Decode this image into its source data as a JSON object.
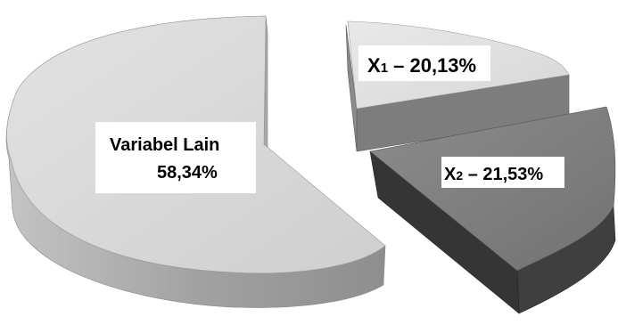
{
  "chart_data": {
    "type": "pie",
    "style": "3d-exploded",
    "legend": "none",
    "slices": [
      {
        "label_main": "X",
        "label_sub": "1",
        "label_rest": " – 20,13%",
        "value": 20.13,
        "color_top": "#e3e3e3",
        "color_side": "#7d7d7d"
      },
      {
        "label_main": "X",
        "label_sub": "2",
        "label_rest": " – 21,53%",
        "value": 21.53,
        "color_top": "#838383",
        "color_side": "#3f3f3f"
      },
      {
        "label_main": "Variabel Lain",
        "label_sub": "",
        "label_rest": "",
        "value_text": "58,34%",
        "value": 58.34,
        "color_top": "#dadada",
        "color_side": "#a4a4a4"
      }
    ]
  }
}
